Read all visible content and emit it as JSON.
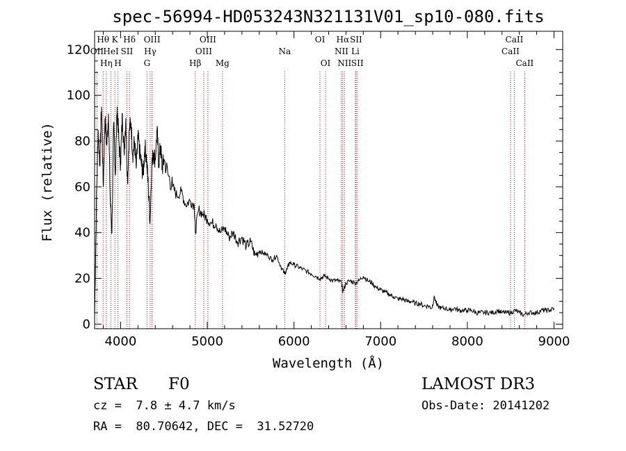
{
  "chart_data": {
    "type": "line",
    "title": "spec-56994-HD053243N321131V01_sp10-080.fits",
    "xlabel": "Wavelength (Å)",
    "ylabel": "Flux (relative)",
    "xlim": [
      3700,
      9100
    ],
    "ylim": [
      -2,
      128
    ],
    "xticks": [
      4000,
      5000,
      6000,
      7000,
      8000,
      9000
    ],
    "yticks": [
      0,
      20,
      40,
      60,
      80,
      100,
      120
    ],
    "series": [
      {
        "name": "spectrum",
        "x": [
          3700,
          3720,
          3740,
          3760,
          3780,
          3800,
          3820,
          3840,
          3860,
          3880,
          3900,
          3920,
          3940,
          3960,
          3980,
          4000,
          4020,
          4040,
          4060,
          4080,
          4100,
          4120,
          4140,
          4160,
          4180,
          4200,
          4220,
          4240,
          4260,
          4280,
          4300,
          4320,
          4340,
          4360,
          4380,
          4400,
          4420,
          4440,
          4460,
          4480,
          4500,
          4550,
          4600,
          4650,
          4700,
          4750,
          4800,
          4850,
          4861,
          4900,
          4950,
          5000,
          5050,
          5100,
          5150,
          5200,
          5250,
          5300,
          5350,
          5400,
          5450,
          5500,
          5550,
          5600,
          5650,
          5700,
          5750,
          5800,
          5850,
          5890,
          5920,
          5950,
          6000,
          6050,
          6100,
          6150,
          6200,
          6250,
          6300,
          6350,
          6400,
          6450,
          6500,
          6550,
          6563,
          6600,
          6650,
          6700,
          6750,
          6800,
          6850,
          6900,
          6950,
          7000,
          7050,
          7100,
          7150,
          7200,
          7250,
          7300,
          7350,
          7400,
          7450,
          7500,
          7550,
          7590,
          7620,
          7650,
          7700,
          7750,
          7800,
          7850,
          7900,
          7950,
          8000,
          8050,
          8100,
          8150,
          8200,
          8250,
          8300,
          8350,
          8400,
          8450,
          8500,
          8550,
          8600,
          8650,
          8700,
          8750,
          8800,
          8850,
          8900,
          8950,
          9000
        ],
        "values": [
          3,
          50,
          85,
          70,
          95,
          60,
          90,
          78,
          92,
          55,
          40,
          88,
          65,
          95,
          80,
          70,
          92,
          75,
          90,
          62,
          85,
          88,
          74,
          80,
          68,
          82,
          75,
          70,
          65,
          78,
          72,
          60,
          45,
          70,
          75,
          72,
          85,
          70,
          78,
          68,
          72,
          65,
          60,
          56,
          58,
          52,
          54,
          52,
          40,
          50,
          48,
          46,
          44,
          44,
          40,
          42,
          38,
          40,
          36,
          38,
          34,
          36,
          30,
          32,
          31,
          30,
          28,
          30,
          25,
          22,
          24,
          27,
          26,
          25,
          24,
          23,
          22,
          21,
          20,
          21,
          20,
          19,
          19,
          18,
          14,
          18,
          19,
          18,
          19,
          21,
          19,
          18,
          16,
          15,
          14,
          13,
          12,
          11,
          11,
          10,
          10,
          9,
          9,
          8,
          8,
          7,
          12,
          8,
          7,
          7,
          6,
          7,
          6,
          6,
          6,
          6,
          5,
          5,
          5,
          5,
          5,
          6,
          5,
          5,
          5,
          6,
          5,
          4,
          5,
          5,
          5,
          6,
          6,
          6,
          7
        ]
      }
    ],
    "lines": [
      {
        "name": "OII",
        "wavelength": 3727,
        "row": 1
      },
      {
        "name": "Hθ",
        "wavelength": 3798,
        "row": 0
      },
      {
        "name": "Hη",
        "wavelength": 3835,
        "row": 2
      },
      {
        "name": "HeI",
        "wavelength": 3889,
        "row": 1
      },
      {
        "name": "K",
        "wavelength": 3934,
        "row": 0
      },
      {
        "name": "H",
        "wavelength": 3969,
        "row": 2
      },
      {
        "name": "SII",
        "wavelength": 4072,
        "row": 1
      },
      {
        "name": "Hδ",
        "wavelength": 4102,
        "row": 0
      },
      {
        "name": "G",
        "wavelength": 4305,
        "row": 2
      },
      {
        "name": "Hγ",
        "wavelength": 4341,
        "row": 1
      },
      {
        "name": "OIII",
        "wavelength": 4363,
        "row": 0
      },
      {
        "name": "Hβ",
        "wavelength": 4861,
        "row": 2
      },
      {
        "name": "OIII",
        "wavelength": 4959,
        "row": 1
      },
      {
        "name": "OIII",
        "wavelength": 5007,
        "row": 0
      },
      {
        "name": "Mg",
        "wavelength": 5175,
        "row": 2
      },
      {
        "name": "Na",
        "wavelength": 5893,
        "row": 1
      },
      {
        "name": "OI",
        "wavelength": 6300,
        "row": 0
      },
      {
        "name": "OI",
        "wavelength": 6364,
        "row": 2
      },
      {
        "name": "NII",
        "wavelength": 6548,
        "row": 1
      },
      {
        "name": "Hα",
        "wavelength": 6563,
        "row": 0
      },
      {
        "name": "NII",
        "wavelength": 6583,
        "row": 2
      },
      {
        "name": "Li",
        "wavelength": 6708,
        "row": 1
      },
      {
        "name": "SII",
        "wavelength": 6716,
        "row": 0
      },
      {
        "name": "SII",
        "wavelength": 6731,
        "row": 2
      },
      {
        "name": "CaII",
        "wavelength": 8498,
        "row": 1
      },
      {
        "name": "CaII",
        "wavelength": 8542,
        "row": 0
      },
      {
        "name": "CaII",
        "wavelength": 8662,
        "row": 2
      }
    ]
  },
  "info": {
    "object_class": "STAR",
    "subclass": "F0",
    "survey": "LAMOST DR3",
    "redshift": "cz =  7.8 ± 4.7 km/s",
    "obs_date": "Obs-Date: 20141202",
    "coords": "RA =  80.70642, DEC =  31.52720"
  },
  "colors": {
    "line_marker": "#cc0000",
    "spectrum": "#000000"
  }
}
